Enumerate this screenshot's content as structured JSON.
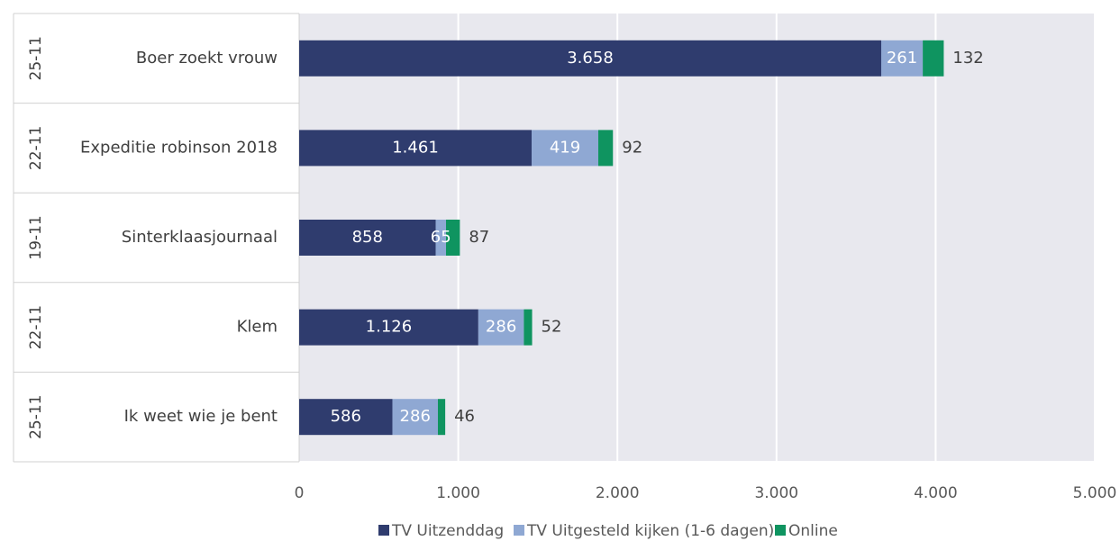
{
  "chart_data": {
    "type": "bar",
    "orientation": "horizontal",
    "stacked": true,
    "categories": [
      "Boer zoekt vrouw",
      "Expeditie robinson 2018",
      "Sinterklaasjournaal",
      "Klem",
      "Ik weet wie je bent"
    ],
    "dates": [
      "25-11",
      "22-11",
      "19-11",
      "22-11",
      "25-11"
    ],
    "series": [
      {
        "name": "TV Uitzenddag",
        "values": [
          3658,
          1461,
          858,
          1126,
          586
        ],
        "labels": [
          "3.658",
          "1.461",
          "858",
          "1.126",
          "586"
        ],
        "color": "#2f3c6e"
      },
      {
        "name": "TV Uitgesteld kijken (1-6 dagen)",
        "values": [
          261,
          419,
          65,
          286,
          286
        ],
        "labels": [
          "261",
          "419",
          "65",
          "286",
          "286"
        ],
        "color": "#8fa8d3"
      },
      {
        "name": "Online",
        "values": [
          132,
          92,
          87,
          52,
          46
        ],
        "labels": [
          "132",
          "92",
          "87",
          "52",
          "46"
        ],
        "color": "#0f9460"
      }
    ],
    "xlim": [
      0,
      5000
    ],
    "xticks": [
      0,
      1000,
      2000,
      3000,
      4000,
      5000
    ],
    "xtick_labels": [
      "0",
      "1.000",
      "2.000",
      "3.000",
      "4.000",
      "5.000"
    ],
    "grid": true,
    "legend_position": "bottom",
    "plot_background": "#e8e8ee"
  }
}
